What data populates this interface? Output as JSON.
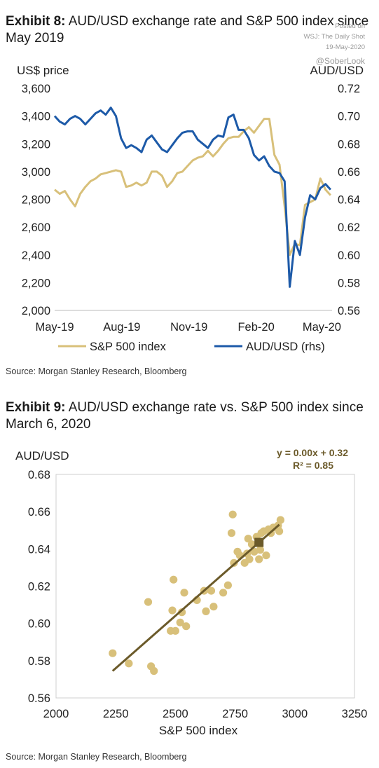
{
  "watermark": {
    "line1": "Posted on",
    "line2": "WSJ: The Daily Shot",
    "line3": "19-May-2020",
    "handle": "@SoberLook"
  },
  "exhibit8": {
    "label": "Exhibit 8:",
    "title": "AUD/USD exchange rate and S&P 500 index since May 2019",
    "source": "Source: Morgan Stanley Research, Bloomberg"
  },
  "exhibit9": {
    "label": "Exhibit 9:",
    "title": "AUD/USD exchange rate vs. S&P 500 index since March 6, 2020",
    "source": "Source: Morgan Stanley Research, Bloomberg"
  },
  "colors": {
    "spx": "#d8c07a",
    "aud": "#1d5aa8",
    "scatter": "#d8c07a",
    "trend": "#6b5a2a",
    "eqn": "#6b5a2a"
  },
  "chart_data": [
    {
      "type": "line",
      "ylabel": "US$ price",
      "y2label": "AUD/USD",
      "xlabel": "",
      "ylim": [
        2000,
        3600
      ],
      "y2lim": [
        0.56,
        0.72
      ],
      "yticks": [
        "3,600",
        "3,400",
        "3,200",
        "3,000",
        "2,800",
        "2,600",
        "2,400",
        "2,200",
        "2,000"
      ],
      "y2ticks": [
        "0.72",
        "0.70",
        "0.68",
        "0.66",
        "0.64",
        "0.62",
        "0.60",
        "0.58",
        "0.56"
      ],
      "xticks": [
        "May-19",
        "Aug-19",
        "Nov-19",
        "Feb-20",
        "May-20"
      ],
      "legend": [
        "S&P 500 index",
        "AUD/USD (rhs)"
      ],
      "legend_position": "bottom",
      "grid": false,
      "series": [
        {
          "name": "S&P 500 index",
          "axis": "left",
          "x": [
            "2019-05-01",
            "2019-05-08",
            "2019-05-15",
            "2019-05-22",
            "2019-05-29",
            "2019-06-05",
            "2019-06-12",
            "2019-06-19",
            "2019-06-26",
            "2019-07-03",
            "2019-07-10",
            "2019-07-17",
            "2019-07-24",
            "2019-07-31",
            "2019-08-07",
            "2019-08-14",
            "2019-08-21",
            "2019-08-28",
            "2019-09-04",
            "2019-09-11",
            "2019-09-18",
            "2019-09-25",
            "2019-10-02",
            "2019-10-09",
            "2019-10-16",
            "2019-10-23",
            "2019-10-30",
            "2019-11-06",
            "2019-11-13",
            "2019-11-20",
            "2019-11-27",
            "2019-12-04",
            "2019-12-11",
            "2019-12-18",
            "2019-12-25",
            "2020-01-01",
            "2020-01-08",
            "2020-01-15",
            "2020-01-22",
            "2020-01-29",
            "2020-02-05",
            "2020-02-12",
            "2020-02-19",
            "2020-02-26",
            "2020-03-04",
            "2020-03-11",
            "2020-03-18",
            "2020-03-25",
            "2020-04-01",
            "2020-04-08",
            "2020-04-15",
            "2020-04-22",
            "2020-04-29",
            "2020-05-06",
            "2020-05-13"
          ],
          "values": [
            2870,
            2840,
            2860,
            2800,
            2750,
            2840,
            2890,
            2930,
            2950,
            2980,
            2990,
            3000,
            3010,
            3000,
            2890,
            2900,
            2920,
            2900,
            2920,
            3000,
            3000,
            2970,
            2890,
            2930,
            2990,
            3000,
            3040,
            3080,
            3100,
            3110,
            3150,
            3110,
            3150,
            3200,
            3240,
            3250,
            3250,
            3290,
            3320,
            3280,
            3330,
            3380,
            3380,
            3120,
            3050,
            2750,
            2400,
            2480,
            2470,
            2760,
            2780,
            2800,
            2950,
            2870,
            2830
          ]
        },
        {
          "name": "AUD/USD (rhs)",
          "axis": "right",
          "x": [
            "2019-05-01",
            "2019-05-08",
            "2019-05-15",
            "2019-05-22",
            "2019-05-29",
            "2019-06-05",
            "2019-06-12",
            "2019-06-19",
            "2019-06-26",
            "2019-07-03",
            "2019-07-10",
            "2019-07-17",
            "2019-07-24",
            "2019-07-31",
            "2019-08-07",
            "2019-08-14",
            "2019-08-21",
            "2019-08-28",
            "2019-09-04",
            "2019-09-11",
            "2019-09-18",
            "2019-09-25",
            "2019-10-02",
            "2019-10-09",
            "2019-10-16",
            "2019-10-23",
            "2019-10-30",
            "2019-11-06",
            "2019-11-13",
            "2019-11-20",
            "2019-11-27",
            "2019-12-04",
            "2019-12-11",
            "2019-12-18",
            "2019-12-25",
            "2020-01-01",
            "2020-01-08",
            "2020-01-15",
            "2020-01-22",
            "2020-01-29",
            "2020-02-05",
            "2020-02-12",
            "2020-02-19",
            "2020-02-26",
            "2020-03-04",
            "2020-03-11",
            "2020-03-18",
            "2020-03-25",
            "2020-04-01",
            "2020-04-08",
            "2020-04-15",
            "2020-04-22",
            "2020-04-29",
            "2020-05-06",
            "2020-05-13"
          ],
          "values": [
            0.7,
            0.696,
            0.694,
            0.698,
            0.7,
            0.698,
            0.694,
            0.698,
            0.702,
            0.704,
            0.701,
            0.706,
            0.7,
            0.684,
            0.677,
            0.679,
            0.677,
            0.674,
            0.683,
            0.686,
            0.681,
            0.676,
            0.674,
            0.679,
            0.684,
            0.688,
            0.689,
            0.689,
            0.683,
            0.68,
            0.677,
            0.683,
            0.686,
            0.685,
            0.699,
            0.701,
            0.69,
            0.69,
            0.684,
            0.672,
            0.668,
            0.671,
            0.664,
            0.66,
            0.659,
            0.653,
            0.577,
            0.61,
            0.6,
            0.627,
            0.643,
            0.64,
            0.648,
            0.651,
            0.647
          ]
        }
      ]
    },
    {
      "type": "scatter",
      "xlabel": "S&P 500 index",
      "ylabel": "AUD/USD",
      "xlim": [
        2000,
        3250
      ],
      "ylim": [
        0.56,
        0.68
      ],
      "xticks": [
        "2000",
        "2250",
        "2500",
        "2750",
        "3000",
        "3250"
      ],
      "yticks": [
        "0.68",
        "0.66",
        "0.64",
        "0.62",
        "0.60",
        "0.58",
        "0.56"
      ],
      "grid": false,
      "equation": "y = 0.00x + 0.32",
      "r2": "R² = 0.85",
      "trendline": {
        "x": [
          2237,
          2935
        ],
        "y": [
          0.5745,
          0.653
        ]
      },
      "highlight": {
        "x": 2850,
        "y": 0.6435
      },
      "points": {
        "x": [
          2237,
          2305,
          2386,
          2398,
          2410,
          2480,
          2487,
          2492,
          2500,
          2520,
          2527,
          2537,
          2545,
          2590,
          2620,
          2628,
          2650,
          2660,
          2700,
          2720,
          2735,
          2740,
          2745,
          2760,
          2770,
          2790,
          2800,
          2805,
          2810,
          2820,
          2830,
          2840,
          2850,
          2855,
          2860,
          2870,
          2880,
          2890,
          2900,
          2910,
          2930,
          2935,
          2940
        ],
        "y": [
          0.584,
          0.5785,
          0.6115,
          0.577,
          0.5745,
          0.596,
          0.607,
          0.6235,
          0.596,
          0.6005,
          0.606,
          0.6165,
          0.5985,
          0.6125,
          0.6175,
          0.6065,
          0.6175,
          0.609,
          0.6165,
          0.6205,
          0.6485,
          0.6585,
          0.6325,
          0.6385,
          0.6365,
          0.6325,
          0.6375,
          0.6455,
          0.6345,
          0.6425,
          0.6385,
          0.6465,
          0.6345,
          0.6395,
          0.6485,
          0.6495,
          0.6365,
          0.6505,
          0.6485,
          0.6515,
          0.6525,
          0.6495,
          0.6555
        ]
      }
    }
  ]
}
